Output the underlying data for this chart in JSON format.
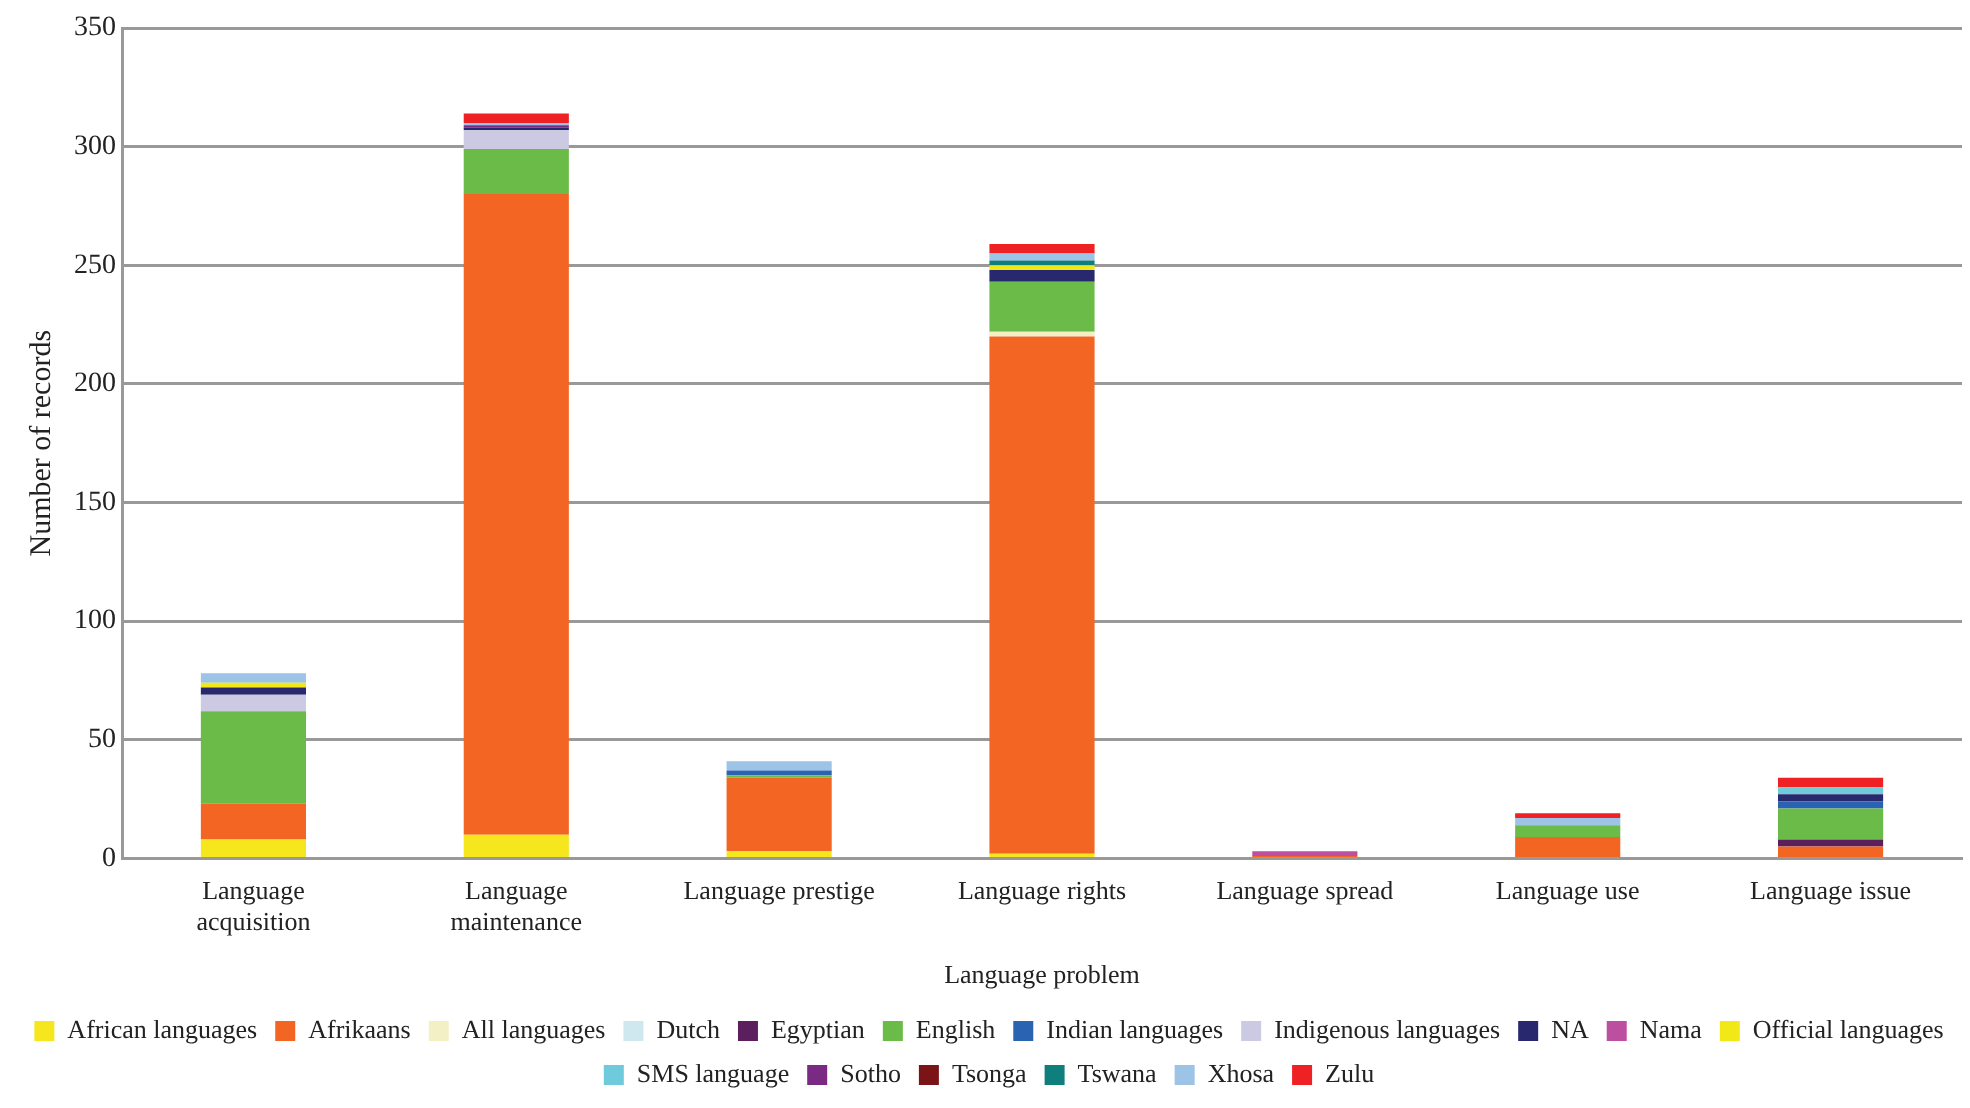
{
  "chart_data": {
    "type": "bar",
    "stacked": true,
    "xlabel": "Language problem",
    "ylabel": "Number of records",
    "categories": [
      "Language acquisition",
      "Language maintenance",
      "Language prestige",
      "Language rights",
      "Language spread",
      "Language use",
      "Language issue"
    ],
    "ylim": [
      0,
      350
    ],
    "yticks": [
      0,
      50,
      100,
      150,
      200,
      250,
      300,
      350
    ],
    "grid": "y",
    "legend": "bottom",
    "series": [
      {
        "name": "African languages",
        "color": "#f5e61e",
        "values": [
          8,
          10,
          3,
          2,
          0,
          0,
          0
        ]
      },
      {
        "name": "Afrikaans",
        "color": "#f26522",
        "values": [
          15,
          270,
          31,
          218,
          1,
          9,
          5
        ]
      },
      {
        "name": "All languages",
        "color": "#f2f0c4",
        "values": [
          0,
          null,
          0,
          2,
          0,
          0,
          0
        ]
      },
      {
        "name": "Dutch",
        "color": "#cfe8f0",
        "values": [
          0,
          0,
          0,
          0,
          0,
          0,
          0
        ]
      },
      {
        "name": "Egyptian",
        "color": "#5c1f5e",
        "values": [
          0,
          0,
          0,
          0,
          0,
          0,
          3
        ]
      },
      {
        "name": "English",
        "color": "#6abb47",
        "values": [
          39,
          19,
          1,
          21,
          0,
          5,
          13
        ]
      },
      {
        "name": "Indian languages",
        "color": "#2a63b1",
        "values": [
          0,
          0,
          2,
          0,
          0,
          0,
          3
        ]
      },
      {
        "name": "Indigenous languages",
        "color": "#ccc9e2",
        "values": [
          7,
          8,
          0,
          0,
          0,
          0,
          0
        ]
      },
      {
        "name": "NA",
        "color": "#28286e",
        "values": [
          3,
          1,
          0,
          5,
          0,
          0,
          3
        ]
      },
      {
        "name": "Nama",
        "color": "#bc4fa0",
        "values": [
          0,
          0,
          0,
          0,
          2,
          0,
          0
        ]
      },
      {
        "name": "Official languages",
        "color": "#f3e817",
        "values": [
          2,
          0,
          0,
          2,
          0,
          0,
          0
        ]
      },
      {
        "name": "SMS language",
        "color": "#6fcadb",
        "values": [
          0,
          0,
          0,
          0,
          0,
          0,
          3
        ]
      },
      {
        "name": "Sotho",
        "color": "#7b2a83",
        "values": [
          0,
          1,
          0,
          0,
          0,
          0,
          0
        ]
      },
      {
        "name": "Tsonga",
        "color": "#7b1416",
        "values": [
          0,
          0,
          0,
          0,
          0,
          0,
          0
        ]
      },
      {
        "name": "Tswana",
        "color": "#0f7f7e",
        "values": [
          0,
          0,
          0,
          2,
          0,
          0,
          0
        ]
      },
      {
        "name": "Xhosa",
        "color": "#9dc3e7",
        "values": [
          4,
          1,
          4,
          3,
          0,
          3,
          0
        ]
      },
      {
        "name": "Zulu",
        "color": "#ee2224",
        "values": [
          0,
          4,
          0,
          4,
          0,
          2,
          4
        ]
      }
    ]
  }
}
